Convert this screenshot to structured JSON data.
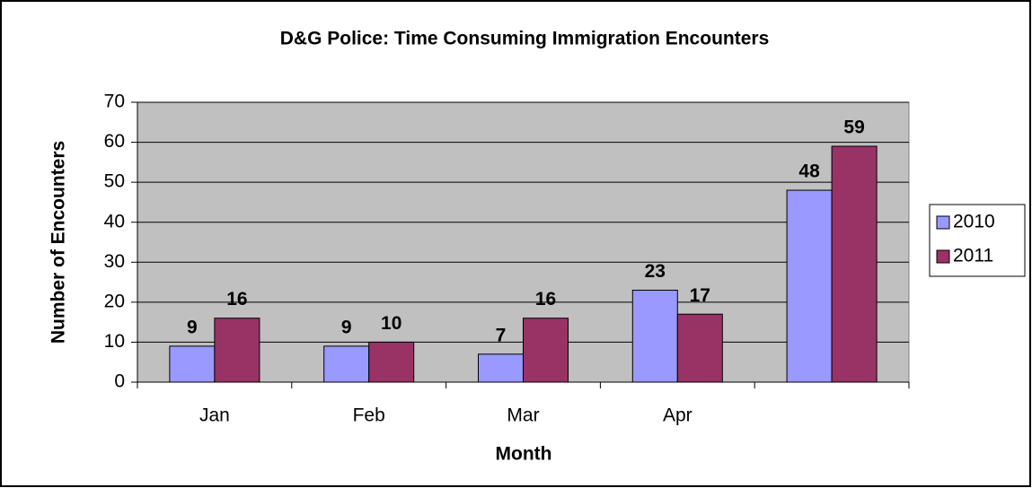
{
  "chart_data": {
    "type": "bar",
    "title": "D&G Police: Time Consuming Immigration Encounters",
    "x_label": "Month",
    "y_label": "Number of Encounters",
    "categories": [
      "Jan",
      "Feb",
      "Mar",
      "Apr",
      null
    ],
    "series": [
      {
        "name": "2010",
        "color": "#9999ff",
        "values": [
          9,
          9,
          7,
          23,
          48
        ]
      },
      {
        "name": "2011",
        "color": "#993366",
        "values": [
          16,
          10,
          16,
          17,
          59
        ]
      }
    ],
    "ylim": [
      0,
      70
    ],
    "yticks": [
      0,
      10,
      20,
      30,
      40,
      50,
      60,
      70
    ],
    "grid": true,
    "legend": "right",
    "plot_background": "#c0c0c0"
  }
}
